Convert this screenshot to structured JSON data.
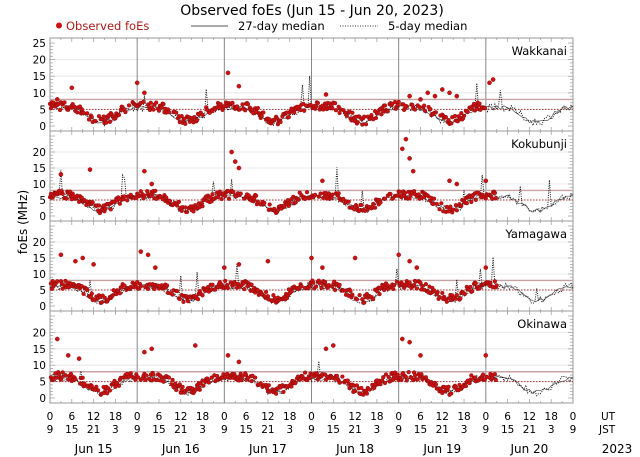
{
  "chart_data": {
    "type": "scatter",
    "title": "Observed foEs (Jun 15 - Jun 20, 2023)",
    "ylabel": "foEs (MHz)",
    "legend": {
      "placement": "top",
      "entries": [
        {
          "label": "Observed foEs",
          "style": "red-dot"
        },
        {
          "label": "27-day median",
          "style": "solid-line"
        },
        {
          "label": "5-day median",
          "style": "dotted-line"
        }
      ]
    },
    "colors": {
      "observed": "#cc1111",
      "observed_edge": "#7a0a0a",
      "median27": "#555555",
      "median5": "#111111",
      "reference_line": "#c9a0a0",
      "gridline": "#e4e4e4",
      "day_line": "#888888"
    },
    "ylim": [
      0,
      25
    ],
    "yticks": [
      "0",
      "5",
      "10",
      "15",
      "20",
      "25"
    ],
    "xlim_hours": [
      0,
      144
    ],
    "xticks_ut": [
      "0",
      "6",
      "12",
      "18",
      "0",
      "6",
      "12",
      "18",
      "0",
      "6",
      "12",
      "18",
      "0",
      "6",
      "12",
      "18",
      "0",
      "6",
      "12",
      "18",
      "0",
      "6",
      "12",
      "18",
      "0"
    ],
    "xticks_jst": [
      "9",
      "15",
      "21",
      "3",
      "9",
      "15",
      "21",
      "3",
      "9",
      "15",
      "21",
      "3",
      "9",
      "15",
      "21",
      "3",
      "9",
      "15",
      "21",
      "3",
      "9",
      "15",
      "21",
      "3",
      "9"
    ],
    "xaxis_row_labels": {
      "ut": "UT",
      "jst": "JST"
    },
    "days": [
      "Jun 15",
      "Jun 16",
      "Jun 17",
      "Jun 18",
      "Jun 19",
      "Jun 20"
    ],
    "year": "2023",
    "stations": [
      {
        "name": "Wakkanai",
        "reference_level": 8,
        "dotted_level": 5,
        "observed_hours_end": 120,
        "bursts": [
          [
            2,
            8
          ],
          [
            6,
            11.5
          ],
          [
            24,
            13
          ],
          [
            26,
            10
          ],
          [
            49,
            16
          ],
          [
            52,
            12
          ],
          [
            76,
            9.5
          ],
          [
            99,
            9
          ],
          [
            102,
            8
          ],
          [
            98,
            6
          ],
          [
            104,
            10
          ],
          [
            106,
            9
          ],
          [
            108,
            11
          ],
          [
            110,
            10
          ],
          [
            112,
            9
          ],
          [
            121,
            13
          ],
          [
            122,
            14
          ]
        ]
      },
      {
        "name": "Kokubunji",
        "reference_level": 8,
        "dotted_level": 5,
        "observed_hours_end": 123,
        "bursts": [
          [
            3,
            13
          ],
          [
            11,
            14.5
          ],
          [
            26,
            14
          ],
          [
            28,
            10
          ],
          [
            50,
            20
          ],
          [
            51,
            17
          ],
          [
            52,
            15
          ],
          [
            75,
            11
          ],
          [
            97,
            21
          ],
          [
            98,
            24
          ],
          [
            99,
            18
          ],
          [
            100,
            14
          ],
          [
            110,
            11
          ],
          [
            112,
            10
          ],
          [
            120,
            11
          ]
        ]
      },
      {
        "name": "Yamagawa",
        "reference_level": 8,
        "dotted_level": 5,
        "observed_hours_end": 123,
        "bursts": [
          [
            3,
            16
          ],
          [
            7,
            14
          ],
          [
            9,
            15
          ],
          [
            12,
            13
          ],
          [
            25,
            17
          ],
          [
            27,
            16
          ],
          [
            29,
            12
          ],
          [
            48,
            12
          ],
          [
            52,
            13
          ],
          [
            60,
            14
          ],
          [
            72,
            15
          ],
          [
            75,
            12
          ],
          [
            84,
            15
          ],
          [
            96,
            16
          ],
          [
            99,
            14
          ],
          [
            101,
            12
          ],
          [
            120,
            12
          ]
        ]
      },
      {
        "name": "Okinawa",
        "reference_level": 8,
        "dotted_level": 5,
        "observed_hours_end": 123,
        "bursts": [
          [
            2,
            18
          ],
          [
            5,
            13
          ],
          [
            8,
            12
          ],
          [
            26,
            14
          ],
          [
            28,
            15
          ],
          [
            40,
            16
          ],
          [
            49,
            13
          ],
          [
            52,
            11
          ],
          [
            76,
            15
          ],
          [
            78,
            16
          ],
          [
            97,
            18
          ],
          [
            99,
            17
          ],
          [
            102,
            13
          ],
          [
            120,
            13
          ]
        ]
      }
    ]
  }
}
